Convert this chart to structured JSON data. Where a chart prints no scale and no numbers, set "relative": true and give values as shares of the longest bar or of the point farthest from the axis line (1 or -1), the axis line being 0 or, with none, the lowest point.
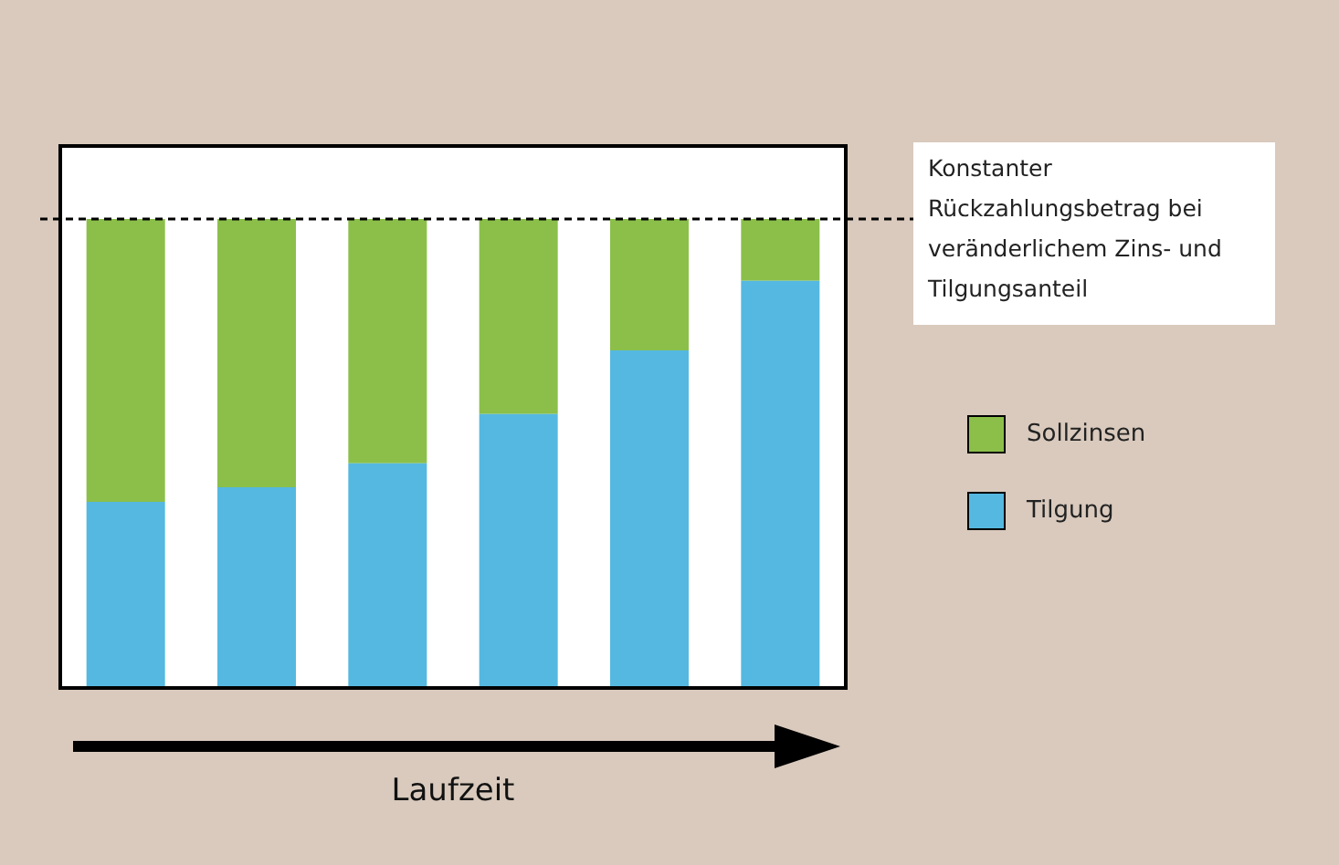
{
  "chart_data": {
    "type": "bar",
    "stacked": true,
    "relative": true,
    "xlabel": "Laufzeit",
    "categories": [
      null,
      null,
      null,
      null,
      null,
      null
    ],
    "series": [
      {
        "name": "Tilgung",
        "color": "#55b8e0",
        "values": [
          0.397,
          0.428,
          0.479,
          0.584,
          0.72,
          0.868
        ]
      },
      {
        "name": "Sollzinsen",
        "color": "#8bbf4a",
        "values": [
          0.603,
          0.572,
          0.521,
          0.416,
          0.28,
          0.132
        ]
      }
    ],
    "ref_lines": [
      {
        "axis": "y",
        "value": 1,
        "label": "Konstanter Rückzahlungsbetrag bei veränderlichem Zins- und Tilgungsanteil",
        "line_style": "dashed"
      }
    ],
    "legend": "right"
  }
}
